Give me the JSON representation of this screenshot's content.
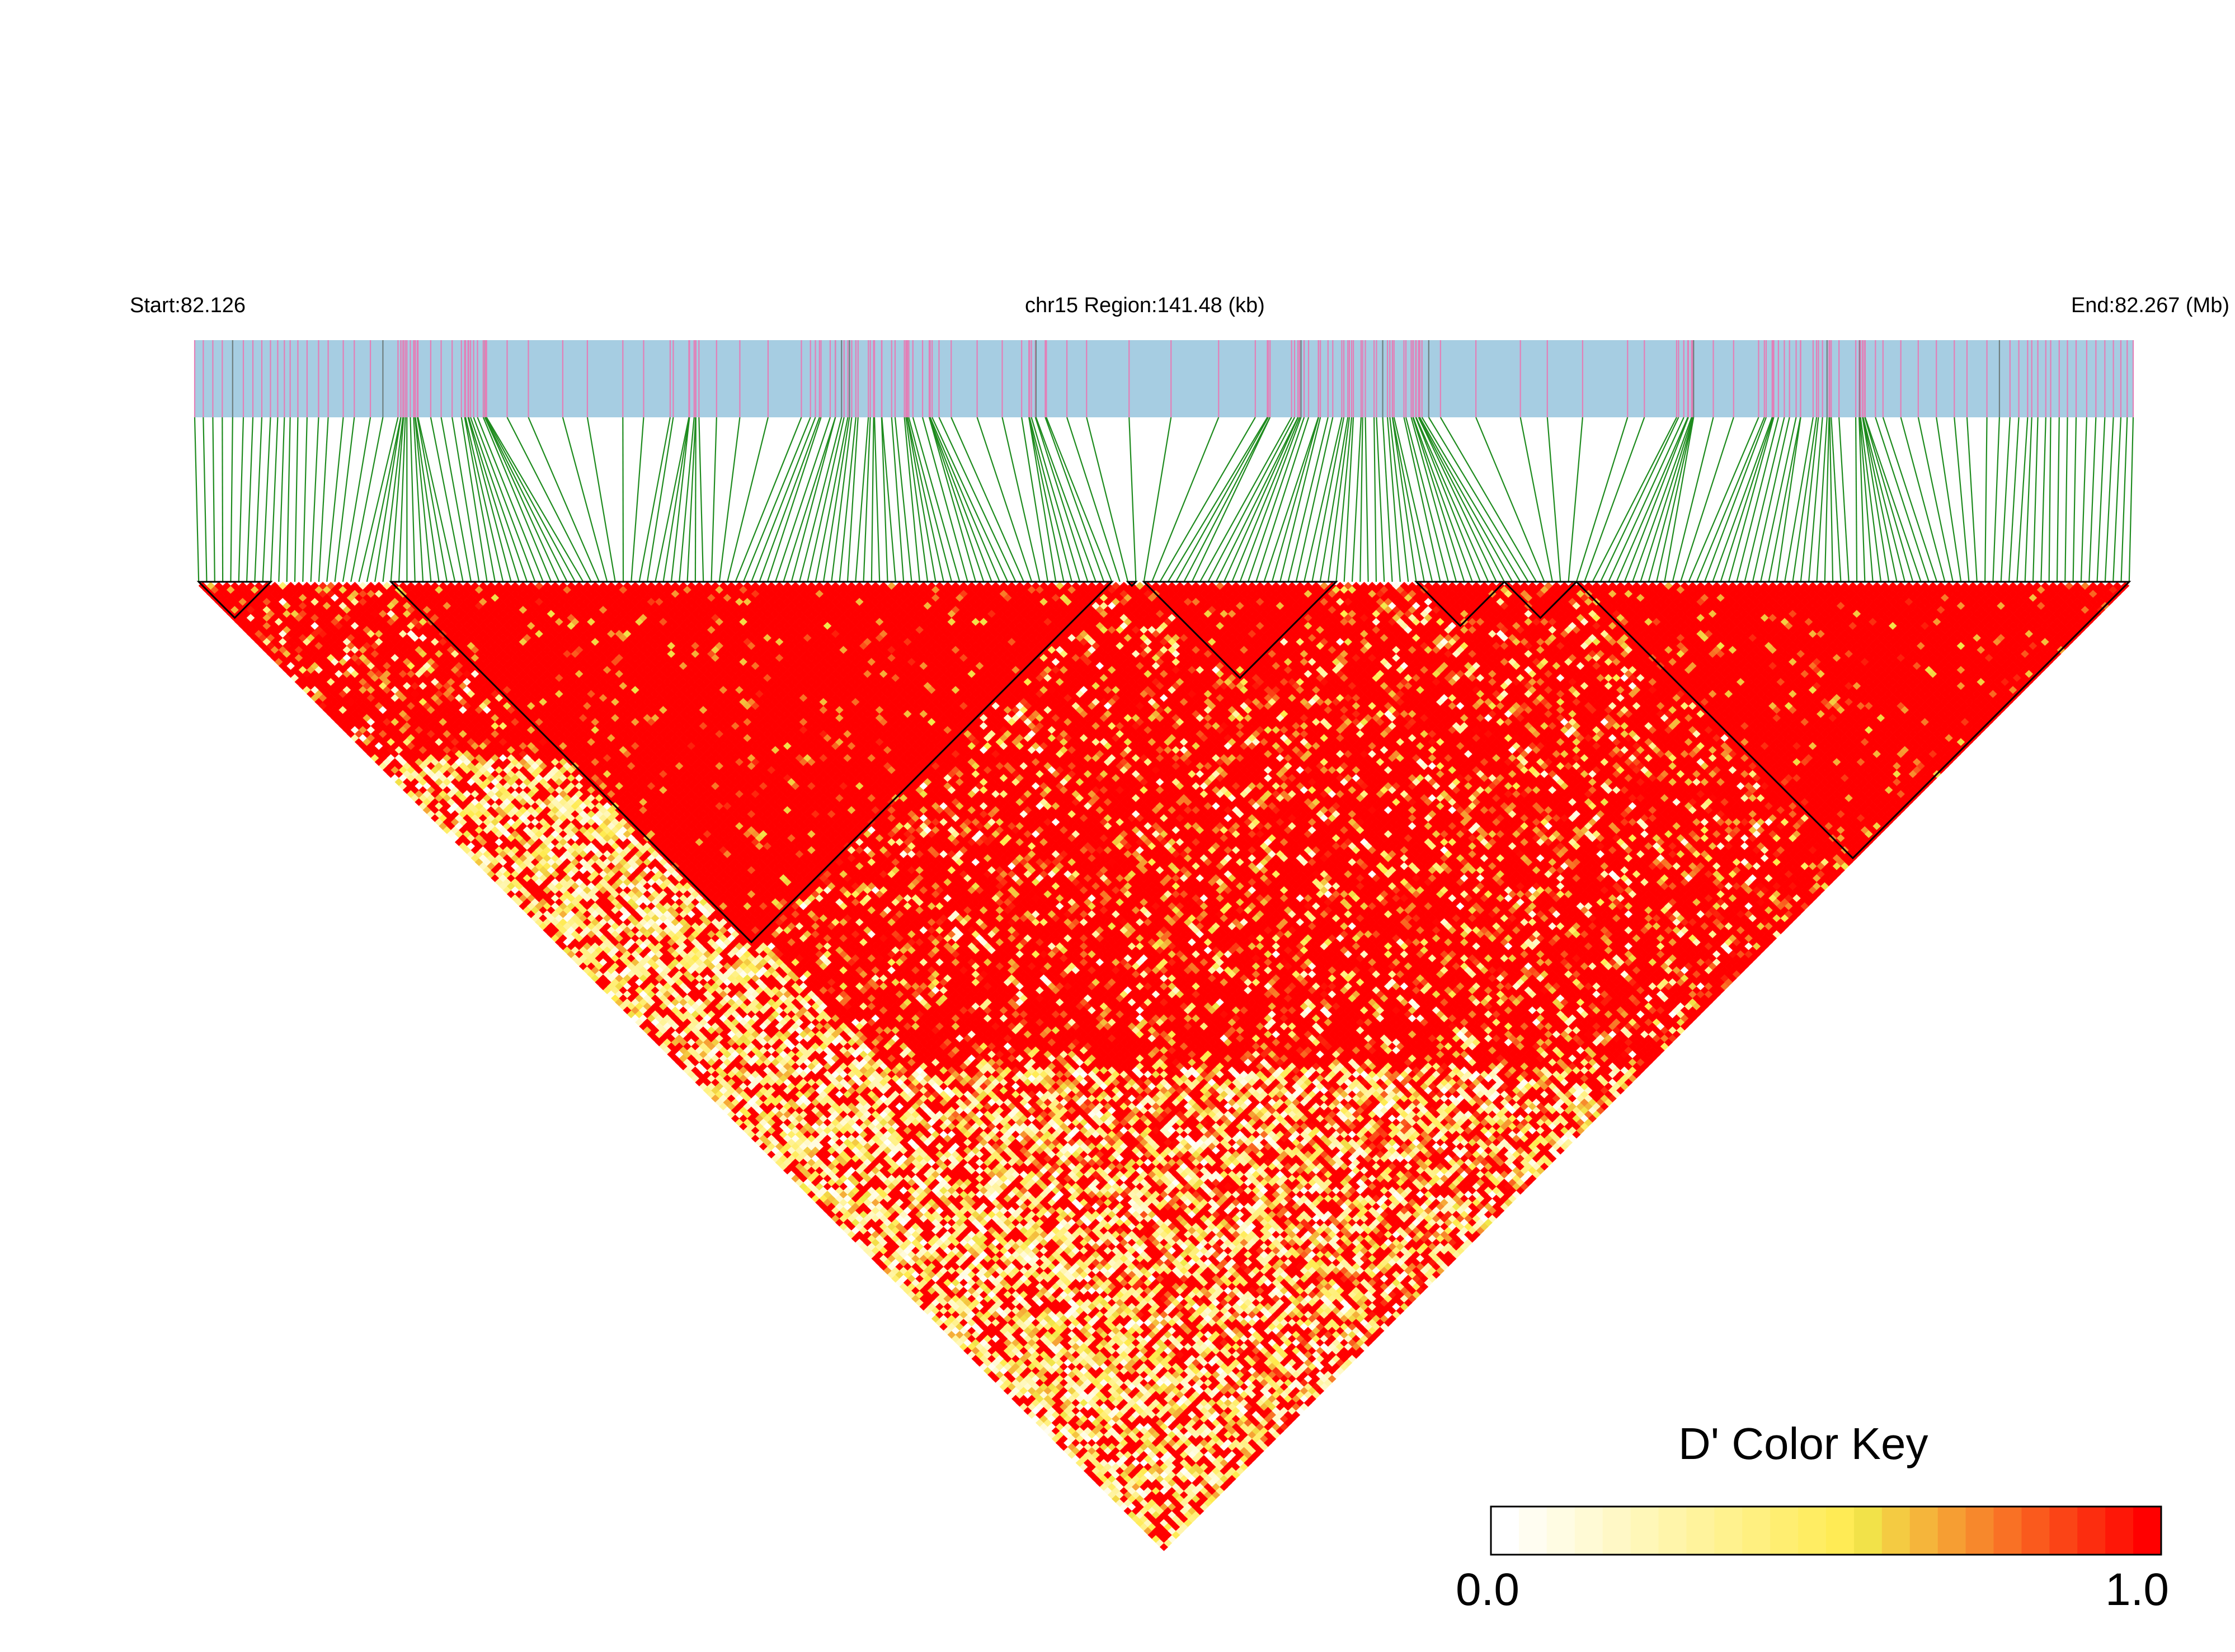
{
  "header": {
    "start_label": "Start:82.126",
    "region_label": "chr15 Region:141.48 (kb)",
    "end_label": "End:82.267 (Mb)"
  },
  "legend": {
    "title": "D' Color Key",
    "min_label": "0.0",
    "max_label": "1.0"
  },
  "colors": {
    "track_background": "#a6cde2",
    "snp_marker": "#e37fb7",
    "snp_marker_dark": "#6f7f7f",
    "connector_line": "#1e8b1e",
    "heat_high": "#ff0000",
    "heat_mid": "#f2ea4c",
    "heat_low": "#ffffff",
    "block_outline": "#000000"
  },
  "chart_data": {
    "type": "heatmap",
    "chromosome": "chr15",
    "region_start_mb": 82.126,
    "region_end_mb": 82.267,
    "region_length_kb": 141.48,
    "snp_count": 242,
    "metric": "D'",
    "value_range": [
      0.0,
      1.0
    ],
    "color_scale": [
      "#ffffff",
      "#f2ea4c",
      "#ff0000"
    ],
    "blocks_snp_index_ranges": [
      [
        0,
        9
      ],
      [
        24,
        114
      ],
      [
        116,
        117
      ],
      [
        118,
        142
      ],
      [
        152,
        163
      ],
      [
        163,
        172
      ],
      [
        172,
        241
      ]
    ],
    "triangle_orientation": "pointing-down"
  }
}
